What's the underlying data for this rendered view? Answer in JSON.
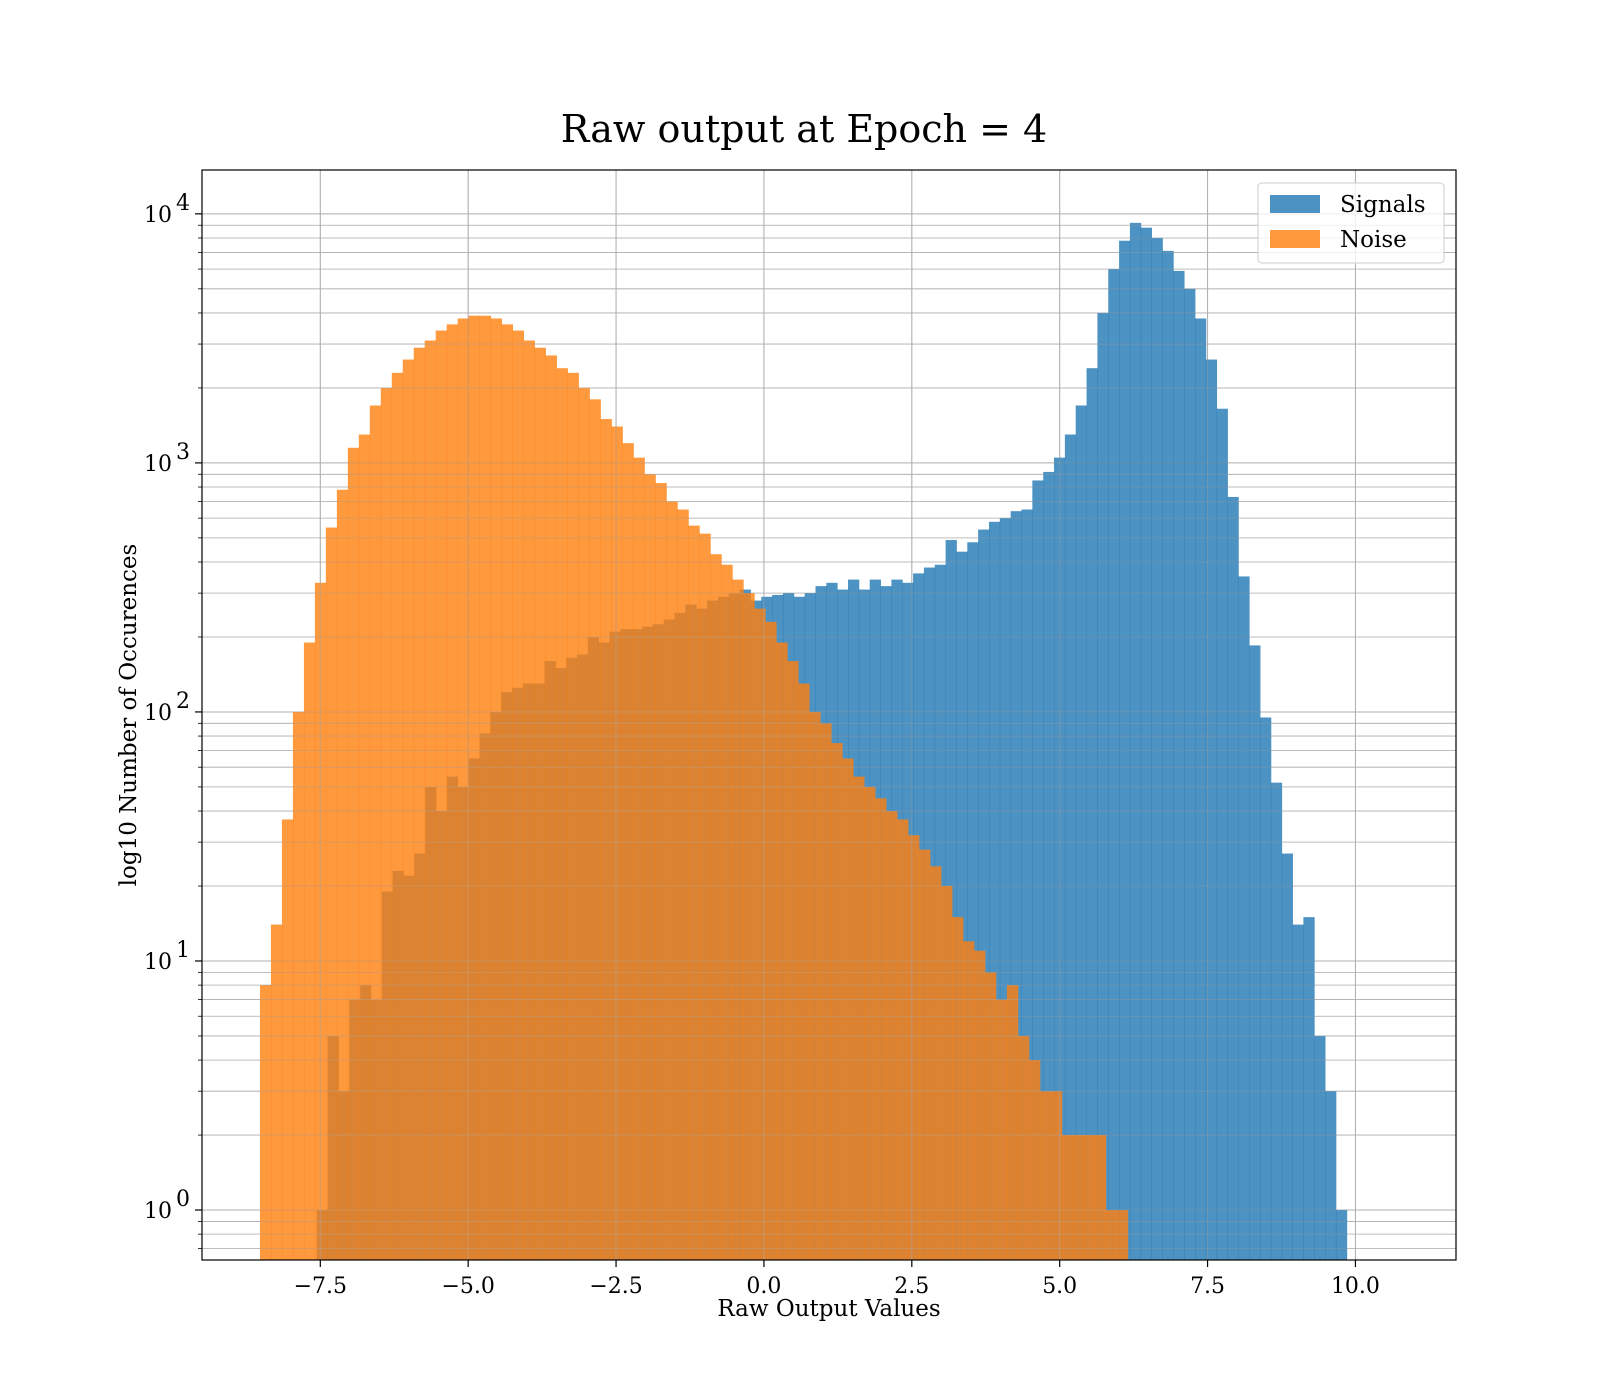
{
  "chart_data": {
    "type": "bar",
    "title": "Raw output at Epoch = 4",
    "xlabel": "Raw Output Values",
    "ylabel": "log10 Number of Occurences",
    "yscale": "log",
    "xlim": [
      -9.5,
      11.7
    ],
    "ylim": [
      0.63,
      15000
    ],
    "grid": true,
    "legend_position": "top-right",
    "x_ticks": [
      {
        "value": -7.5,
        "label": "−7.5"
      },
      {
        "value": -5.0,
        "label": "−5.0"
      },
      {
        "value": -2.5,
        "label": "−2.5"
      },
      {
        "value": 0.0,
        "label": "0.0"
      },
      {
        "value": 2.5,
        "label": "2.5"
      },
      {
        "value": 5.0,
        "label": "5.0"
      },
      {
        "value": 7.5,
        "label": "7.5"
      },
      {
        "value": 10.0,
        "label": "10.0"
      }
    ],
    "y_ticks": [
      {
        "value": 1,
        "base": "10",
        "exp": "0"
      },
      {
        "value": 10,
        "base": "10",
        "exp": "1"
      },
      {
        "value": 100,
        "base": "10",
        "exp": "2"
      },
      {
        "value": 1000,
        "base": "10",
        "exp": "3"
      },
      {
        "value": 10000,
        "base": "10",
        "exp": "4"
      }
    ],
    "series": [
      {
        "name": "Signals",
        "color": "#1f77b4",
        "opacity": 0.8,
        "bin_start": -7.56,
        "bin_width": 0.1833,
        "counts": [
          1,
          5,
          3,
          7,
          8,
          7,
          19,
          23,
          22,
          27,
          50,
          40,
          55,
          50,
          65,
          82,
          100,
          120,
          125,
          130,
          130,
          160,
          150,
          165,
          170,
          200,
          190,
          210,
          215,
          215,
          220,
          225,
          235,
          250,
          270,
          260,
          280,
          290,
          300,
          310,
          280,
          290,
          295,
          300,
          290,
          300,
          320,
          330,
          310,
          340,
          310,
          340,
          320,
          340,
          330,
          360,
          380,
          390,
          490,
          440,
          480,
          540,
          580,
          600,
          640,
          650,
          850,
          920,
          1050,
          1300,
          1700,
          2400,
          4000,
          6000,
          7800,
          9200,
          8800,
          8000,
          7100,
          5900,
          5000,
          3800,
          2600,
          1650,
          730,
          350,
          185,
          95,
          52,
          27,
          14,
          15,
          5,
          3,
          1
        ]
      },
      {
        "name": "Noise",
        "color": "#ff7f0e",
        "opacity": 0.8,
        "bin_start": -8.52,
        "bin_width": 0.1857,
        "counts": [
          8,
          14,
          37,
          100,
          190,
          330,
          550,
          780,
          1150,
          1300,
          1700,
          2000,
          2300,
          2600,
          2900,
          3100,
          3400,
          3600,
          3800,
          3900,
          3900,
          3800,
          3600,
          3400,
          3100,
          2900,
          2700,
          2400,
          2300,
          2000,
          1800,
          1500,
          1400,
          1200,
          1050,
          900,
          830,
          700,
          650,
          560,
          520,
          430,
          390,
          340,
          300,
          260,
          230,
          190,
          160,
          130,
          100,
          90,
          75,
          65,
          55,
          50,
          45,
          40,
          37,
          32,
          28,
          24,
          20,
          15,
          12,
          11,
          9,
          7,
          8,
          5,
          4,
          3,
          3,
          2,
          2,
          2,
          2,
          1,
          1
        ]
      }
    ]
  }
}
